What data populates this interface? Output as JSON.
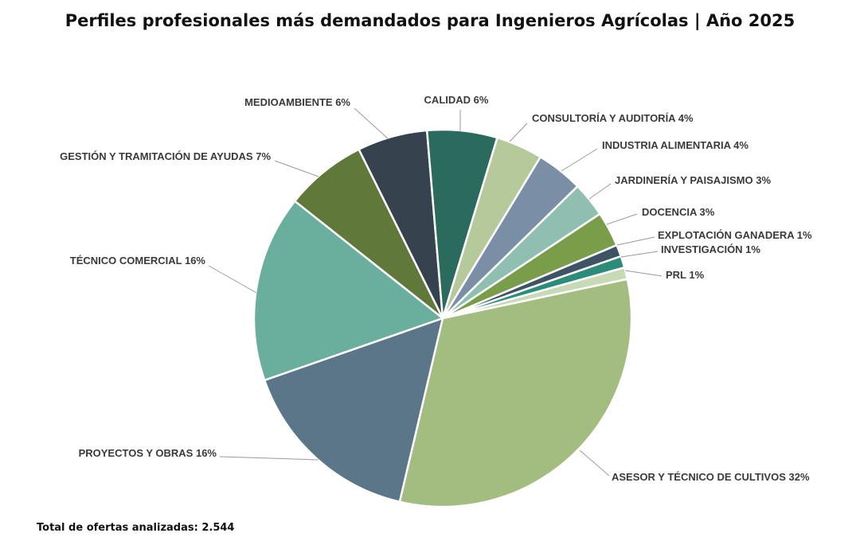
{
  "chart_data": {
    "type": "pie",
    "title": "Perfiles profesionales más demandados para Ingenieros Agrícolas | Año 2025",
    "footer": "Total de ofertas analizadas: 2.544",
    "unit": "%",
    "legend": "none (leader-line labels)",
    "slices": [
      {
        "label": "ASESOR Y TÉCNICO DE CULTIVOS 32%",
        "name": "ASESOR Y TÉCNICO DE CULTIVOS",
        "value": 32,
        "color": "#a3bc7f"
      },
      {
        "label": "PROYECTOS Y OBRAS 16%",
        "name": "PROYECTOS Y OBRAS",
        "value": 16,
        "color": "#5b7589"
      },
      {
        "label": "TÉCNICO COMERCIAL 16%",
        "name": "TÉCNICO COMERCIAL",
        "value": 16,
        "color": "#6aae9d"
      },
      {
        "label": "GESTIÓN Y TRAMITACIÓN DE AYUDAS 7%",
        "name": "GESTIÓN Y TRAMITACIÓN DE AYUDAS",
        "value": 7,
        "color": "#61783b"
      },
      {
        "label": "MEDIOAMBIENTE 6%",
        "name": "MEDIOAMBIENTE",
        "value": 6,
        "color": "#36434f"
      },
      {
        "label": "CALIDAD 6%",
        "name": "CALIDAD",
        "value": 6,
        "color": "#2b6b5e"
      },
      {
        "label": "CONSULTORÍA Y AUDITORÍA 4%",
        "name": "CONSULTORÍA Y AUDITORÍA",
        "value": 4,
        "color": "#b6c99a"
      },
      {
        "label": "INDUSTRIA ALIMENTARIA 4%",
        "name": "INDUSTRIA ALIMENTARIA",
        "value": 4,
        "color": "#7a8fa5"
      },
      {
        "label": "JARDINERÍA Y PAISAJISMO 3%",
        "name": "JARDINERÍA Y PAISAJISMO",
        "value": 3,
        "color": "#8fbfb0"
      },
      {
        "label": "DOCENCIA 3%",
        "name": "DOCENCIA",
        "value": 3,
        "color": "#7a9d4a"
      },
      {
        "label": "EXPLOTACIÓN GANADERA 1%",
        "name": "EXPLOTACIÓN GANADERA",
        "value": 1,
        "color": "#3e5366"
      },
      {
        "label": "INVESTIGACIÓN 1%",
        "name": "INVESTIGACIÓN",
        "value": 1,
        "color": "#2b8c7a"
      },
      {
        "label": "PRL 1%",
        "name": "PRL",
        "value": 1,
        "color": "#c7d9b5"
      }
    ]
  }
}
